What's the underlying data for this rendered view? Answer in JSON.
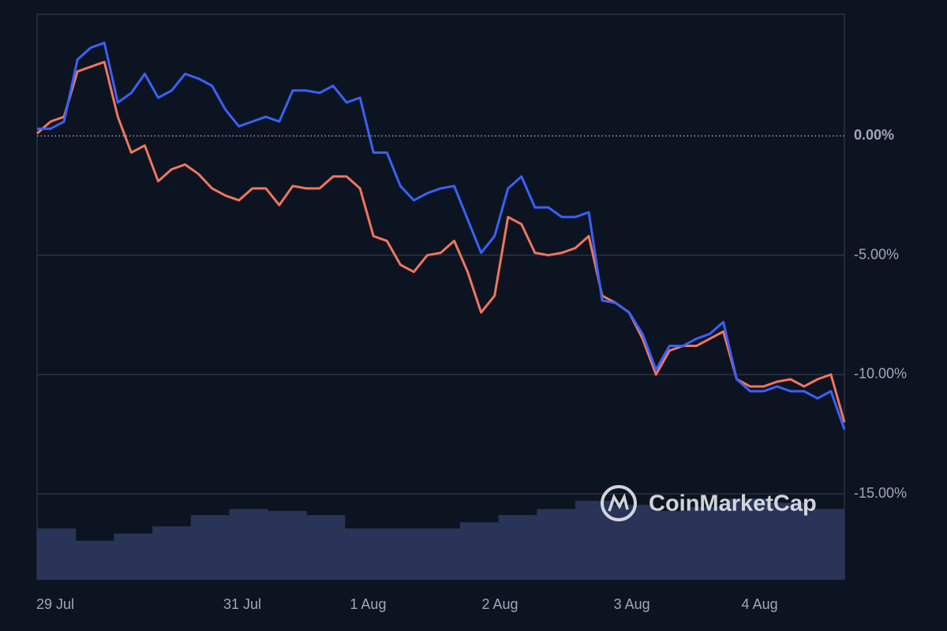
{
  "chart_data": {
    "type": "line",
    "watermark": "CoinMarketCap",
    "xlim": [
      0,
      60
    ],
    "xticks": [
      {
        "value": 1.35,
        "label": "29 Jul"
      },
      {
        "value": 15.25,
        "label": "31 Jul"
      },
      {
        "value": 24.6,
        "label": "1 Aug"
      },
      {
        "value": 34.4,
        "label": "2 Aug"
      },
      {
        "value": 44.2,
        "label": "3 Aug"
      },
      {
        "value": 53.7,
        "label": "4 Aug"
      }
    ],
    "ylim": [
      -18.6,
      5.1
    ],
    "yticks": [
      {
        "value": 0,
        "label": "0.00%"
      },
      {
        "value": -5,
        "label": "-5.00%"
      },
      {
        "value": -10,
        "label": "-10.00%"
      },
      {
        "value": -15,
        "label": "-15.00%"
      }
    ],
    "series": [
      {
        "color": "#3861fb",
        "values": [
          0.3,
          0.3,
          0.6,
          3.2,
          3.7,
          3.9,
          1.4,
          1.8,
          2.6,
          1.6,
          1.9,
          2.6,
          2.4,
          2.1,
          1.1,
          0.4,
          0.6,
          0.8,
          0.6,
          1.9,
          1.9,
          1.8,
          2.1,
          1.4,
          1.6,
          -0.7,
          -0.7,
          -2.1,
          -2.7,
          -2.4,
          -2.2,
          -2.1,
          -3.5,
          -4.9,
          -4.2,
          -2.2,
          -1.7,
          -3.0,
          -3.0,
          -3.4,
          -3.4,
          -3.2,
          -6.9,
          -7.0,
          -7.4,
          -8.3,
          -9.8,
          -8.8,
          -8.8,
          -8.5,
          -8.3,
          -7.8,
          -10.2,
          -10.7,
          -10.7,
          -10.5,
          -10.7,
          -10.7,
          -11.0,
          -10.7,
          -12.3
        ]
      },
      {
        "color": "#f0755f",
        "values": [
          0.1,
          0.6,
          0.8,
          2.7,
          2.9,
          3.1,
          0.8,
          -0.7,
          -0.4,
          -1.9,
          -1.4,
          -1.2,
          -1.6,
          -2.2,
          -2.5,
          -2.7,
          -2.2,
          -2.2,
          -2.9,
          -2.1,
          -2.2,
          -2.2,
          -1.7,
          -1.7,
          -2.2,
          -4.2,
          -4.4,
          -5.4,
          -5.7,
          -5.0,
          -4.9,
          -4.4,
          -5.7,
          -7.4,
          -6.7,
          -3.4,
          -3.7,
          -4.9,
          -5.0,
          -4.9,
          -4.7,
          -4.2,
          -6.7,
          -7.0,
          -7.4,
          -8.5,
          -10.0,
          -9.0,
          -8.8,
          -8.8,
          -8.5,
          -8.2,
          -10.2,
          -10.5,
          -10.5,
          -10.3,
          -10.2,
          -10.5,
          -10.2,
          -10.0,
          -12.0
        ]
      }
    ],
    "volume": {
      "color": "#2a3458",
      "values": [
        50,
        38,
        45,
        52,
        63,
        69,
        67,
        63,
        50,
        50,
        50,
        56,
        63,
        69,
        77,
        73,
        67,
        71,
        79,
        75,
        69
      ]
    }
  }
}
